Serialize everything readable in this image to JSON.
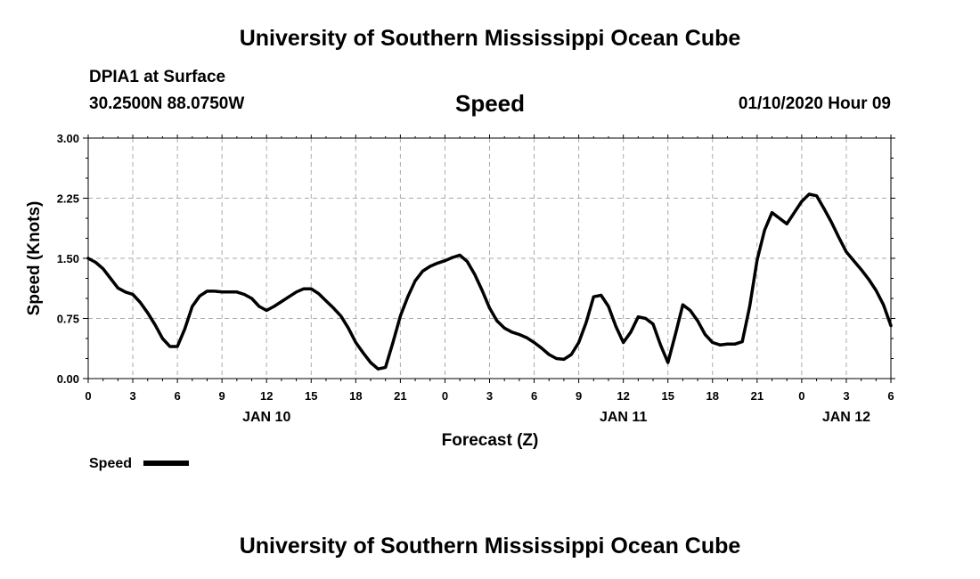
{
  "header": {
    "title": "University of Southern Mississippi Ocean Cube",
    "station": "DPIA1 at Surface",
    "coords": "30.2500N 88.0750W",
    "chart_title": "Speed",
    "issued": "01/10/2020 Hour 09"
  },
  "footer": {
    "title": "University of Southern Mississippi Ocean Cube"
  },
  "colors": {
    "line": "#000000",
    "grid": "#aaaaaa"
  },
  "chart_data": {
    "type": "line",
    "title": "Speed",
    "xlabel": "Forecast (Z)",
    "ylabel": "Speed (Knots)",
    "xlim": [
      0,
      54
    ],
    "ylim": [
      0,
      3
    ],
    "grid": true,
    "legend": "bottom-left",
    "x_tick_positions": [
      0,
      3,
      6,
      9,
      12,
      15,
      18,
      21,
      24,
      27,
      30,
      33,
      36,
      39,
      42,
      45,
      48,
      51,
      54
    ],
    "x_tick_labels": [
      "0",
      "3",
      "6",
      "9",
      "12",
      "15",
      "18",
      "21",
      "0",
      "3",
      "6",
      "9",
      "12",
      "15",
      "18",
      "21",
      "0",
      "3",
      "6"
    ],
    "y_ticks": [
      0,
      0.75,
      1.5,
      2.25,
      3
    ],
    "y_tick_labels": [
      "0.00",
      "0.75",
      "1.50",
      "2.25",
      "3.00"
    ],
    "day_labels": [
      {
        "x": 12,
        "label": "JAN 10"
      },
      {
        "x": 36,
        "label": "JAN 11"
      },
      {
        "x": 51,
        "label": "JAN 12"
      }
    ],
    "series": [
      {
        "name": "Speed",
        "x": [
          0,
          0.5,
          1,
          1.5,
          2,
          2.5,
          3,
          3.5,
          4,
          4.5,
          5,
          5.5,
          6,
          6.5,
          7,
          7.5,
          8,
          8.5,
          9,
          9.5,
          10,
          10.5,
          11,
          11.5,
          12,
          12.5,
          13,
          13.5,
          14,
          14.5,
          15,
          15.5,
          16,
          16.5,
          17,
          17.5,
          18,
          18.5,
          19,
          19.5,
          20,
          20.5,
          21,
          21.5,
          22,
          22.5,
          23,
          23.5,
          24,
          24.5,
          25,
          25.5,
          26,
          26.5,
          27,
          27.5,
          28,
          28.5,
          29,
          29.5,
          30,
          30.5,
          31,
          31.5,
          32,
          32.5,
          33,
          33.5,
          34,
          34.5,
          35,
          35.5,
          36,
          36.5,
          37,
          37.5,
          38,
          38.5,
          39,
          39.5,
          40,
          40.5,
          41,
          41.5,
          42,
          42.5,
          43,
          43.5,
          44,
          44.5,
          45,
          45.5,
          46,
          46.5,
          47,
          47.5,
          48,
          48.5,
          49,
          49.5,
          50,
          50.5,
          51,
          51.5,
          52,
          52.5,
          53,
          53.5,
          54
        ],
        "values": [
          1.5,
          1.45,
          1.37,
          1.25,
          1.13,
          1.08,
          1.05,
          0.95,
          0.82,
          0.67,
          0.5,
          0.4,
          0.4,
          0.62,
          0.9,
          1.03,
          1.09,
          1.09,
          1.08,
          1.08,
          1.08,
          1.05,
          1.0,
          0.9,
          0.85,
          0.9,
          0.96,
          1.02,
          1.08,
          1.12,
          1.12,
          1.06,
          0.97,
          0.88,
          0.78,
          0.63,
          0.45,
          0.32,
          0.2,
          0.12,
          0.14,
          0.45,
          0.78,
          1.02,
          1.22,
          1.34,
          1.4,
          1.44,
          1.47,
          1.51,
          1.54,
          1.46,
          1.3,
          1.1,
          0.88,
          0.72,
          0.63,
          0.58,
          0.55,
          0.51,
          0.45,
          0.38,
          0.3,
          0.25,
          0.24,
          0.3,
          0.45,
          0.7,
          1.02,
          1.04,
          0.9,
          0.65,
          0.45,
          0.58,
          0.77,
          0.75,
          0.68,
          0.42,
          0.2,
          0.55,
          0.92,
          0.85,
          0.72,
          0.55,
          0.45,
          0.42,
          0.43,
          0.43,
          0.46,
          0.9,
          1.48,
          1.85,
          2.07,
          2.0,
          1.93,
          2.07,
          2.21,
          2.3,
          2.28,
          2.12,
          1.95,
          1.76,
          1.58,
          1.47,
          1.36,
          1.24,
          1.1,
          0.92,
          0.66
        ]
      }
    ]
  }
}
